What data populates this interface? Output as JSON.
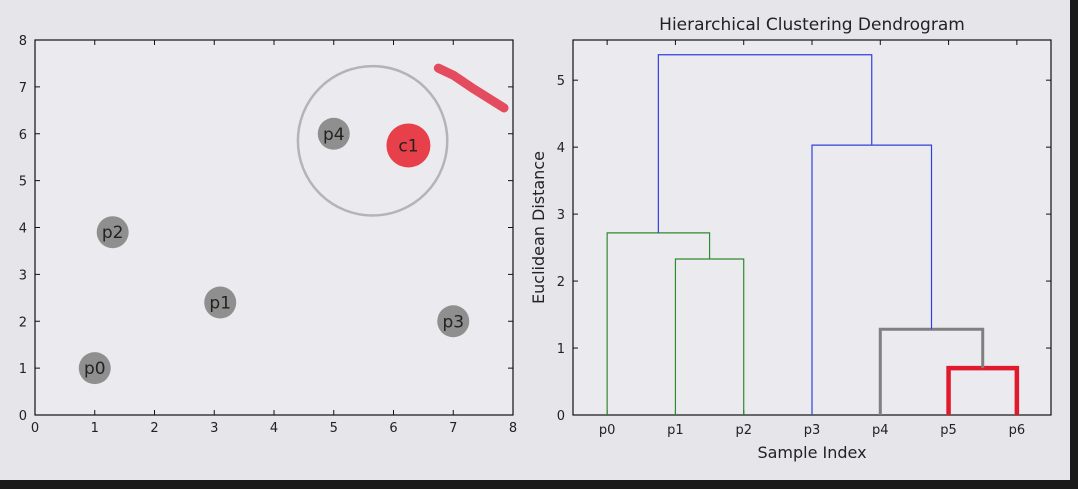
{
  "colors": {
    "background": "#e6e6ea",
    "axes_face": "#ebebef",
    "point_fill": "#8f8f8f",
    "centroid_fill": "#e8404a",
    "selection_ring": "#b4b4b4",
    "stroke_trail": "#e33a4e",
    "tree_blue": "#3040e0",
    "tree_green": "#308a30",
    "tree_gray": "#808080",
    "tree_red": "#e01a2c"
  },
  "chart_data": [
    {
      "type": "scatter",
      "title": "",
      "xlabel": "",
      "ylabel": "",
      "xlim": [
        0,
        8
      ],
      "ylim": [
        0,
        8
      ],
      "xticks": [
        "0",
        "1",
        "2",
        "3",
        "4",
        "5",
        "6",
        "7",
        "8"
      ],
      "yticks": [
        "0",
        "1",
        "2",
        "3",
        "4",
        "5",
        "6",
        "7",
        "8"
      ],
      "points": [
        {
          "label": "p0",
          "x": 1.0,
          "y": 1.0
        },
        {
          "label": "p1",
          "x": 3.1,
          "y": 2.4
        },
        {
          "label": "p2",
          "x": 1.3,
          "y": 3.9
        },
        {
          "label": "p3",
          "x": 7.0,
          "y": 2.0
        },
        {
          "label": "p4",
          "x": 5.0,
          "y": 6.0
        }
      ],
      "centroids": [
        {
          "label": "c1",
          "x": 6.25,
          "y": 5.75
        }
      ],
      "selection_ring": {
        "center_x": 5.65,
        "center_y": 5.85,
        "radius": 1.25
      },
      "stroke_trail": [
        [
          6.75,
          7.4
        ],
        [
          7.0,
          7.25
        ],
        [
          7.35,
          6.95
        ],
        [
          7.85,
          6.55
        ]
      ]
    },
    {
      "type": "dendrogram",
      "title": "Hierarchical Clustering Dendrogram",
      "xlabel": "Sample Index",
      "ylabel": "Euclidean Distance",
      "categories": [
        "p0",
        "p1",
        "p2",
        "p3",
        "p4",
        "p5",
        "p6"
      ],
      "ylim": [
        0,
        5.6
      ],
      "yticks": [
        "0",
        "1",
        "2",
        "3",
        "4",
        "5"
      ],
      "merges": [
        {
          "left": "p5",
          "right": "p6",
          "height": 0.7,
          "color": "red"
        },
        {
          "left": "p4",
          "right": "(p5,p6)",
          "height": 1.28,
          "color": "gray"
        },
        {
          "left": "p1",
          "right": "p2",
          "height": 2.33,
          "color": "green"
        },
        {
          "left": "p0",
          "right": "(p1,p2)",
          "height": 2.72,
          "color": "green"
        },
        {
          "left": "p3",
          "right": "(p4,p5,p6)",
          "height": 4.03,
          "color": "blue"
        },
        {
          "left": "(p0,p1,p2)",
          "right": "(p3,p4,p5,p6)",
          "height": 5.38,
          "color": "blue"
        }
      ]
    }
  ]
}
